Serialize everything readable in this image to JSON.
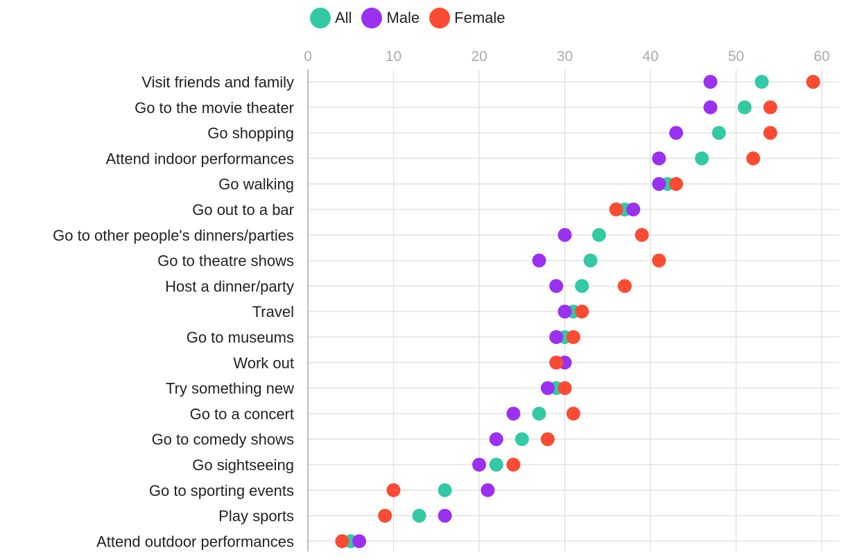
{
  "colors": {
    "All": "#33c9a4",
    "Male": "#9b30f0",
    "Female": "#fb4b33",
    "grid": "#e2e2e2",
    "axis": "#bdbdbd"
  },
  "chart_data": {
    "type": "dot",
    "title": "",
    "xlabel": "",
    "ylabel": "",
    "xlim": [
      0,
      60
    ],
    "xticks": [
      0,
      10,
      20,
      30,
      40,
      50,
      60
    ],
    "legend_position": "top-left",
    "categories": [
      "Visit friends and family",
      "Go to the movie theater",
      "Go shopping",
      "Attend indoor performances",
      "Go walking",
      "Go out to a bar",
      "Go to other people's dinners/parties",
      "Go to theatre shows",
      "Host a dinner/party",
      "Travel",
      "Go to museums",
      "Work out",
      "Try something new",
      "Go to a concert",
      "Go to comedy shows",
      "Go sightseeing",
      "Go to sporting events",
      "Play sports",
      "Attend outdoor performances"
    ],
    "series": [
      {
        "name": "All",
        "values": [
          53,
          51,
          48,
          46,
          42,
          37,
          34,
          33,
          32,
          31,
          30,
          29,
          29,
          27,
          25,
          22,
          16,
          13,
          5
        ]
      },
      {
        "name": "Male",
        "values": [
          47,
          47,
          43,
          41,
          41,
          38,
          30,
          27,
          29,
          30,
          29,
          30,
          28,
          24,
          22,
          20,
          21,
          16,
          6
        ]
      },
      {
        "name": "Female",
        "values": [
          59,
          54,
          54,
          52,
          43,
          36,
          39,
          41,
          37,
          32,
          31,
          29,
          30,
          31,
          28,
          24,
          10,
          9,
          4
        ]
      }
    ]
  }
}
